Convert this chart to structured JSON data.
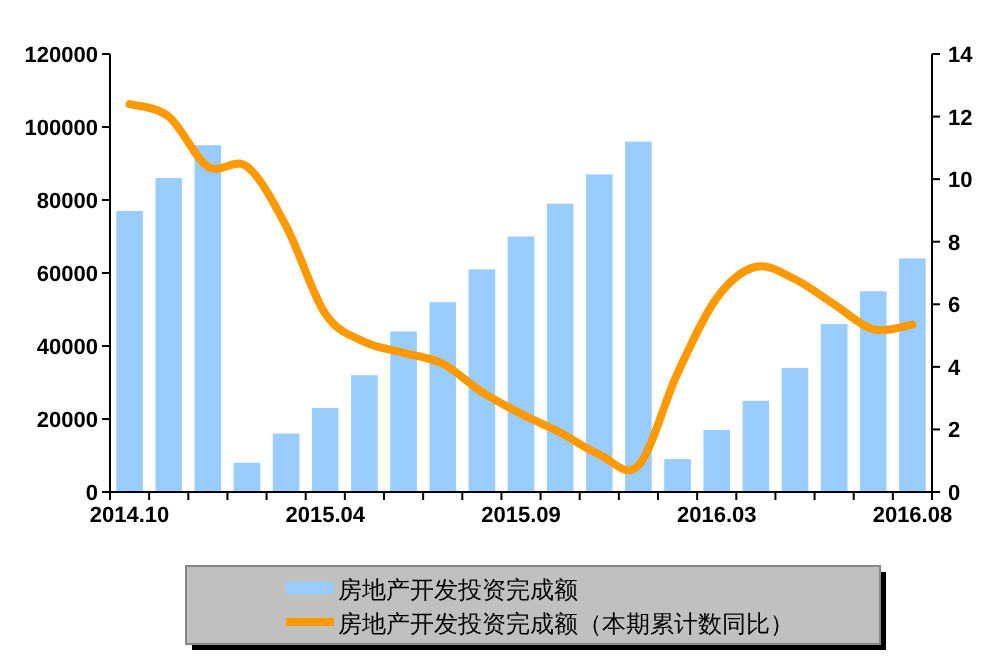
{
  "chart_data": {
    "type": "bar",
    "categories": [
      "2014.10",
      null,
      null,
      null,
      null,
      "2015.04",
      null,
      null,
      null,
      null,
      "2015.09",
      null,
      null,
      null,
      null,
      "2016.03",
      null,
      null,
      null,
      null,
      "2016.08"
    ],
    "series": [
      {
        "name": "房地产开发投资完成额",
        "color": "#99ccff",
        "values": [
          77000,
          86000,
          95000,
          8000,
          16000,
          23000,
          32000,
          44000,
          52000,
          61000,
          70000,
          79000,
          87000,
          96000,
          9000,
          17000,
          25000,
          34000,
          46000,
          55000,
          64000
        ]
      },
      {
        "name": "房地产开发投资完成额（本期累计数同比）",
        "type": "line",
        "axis": "y2",
        "color": "#ff9900",
        "values": [
          12.4,
          12.0,
          10.4,
          10.4,
          8.5,
          5.7,
          4.8,
          4.45,
          4.1,
          3.2,
          2.5,
          1.9,
          1.2,
          0.85,
          3.8,
          6.2,
          7.2,
          6.8,
          6.0,
          5.2,
          5.35
        ]
      }
    ],
    "ylim": [
      0,
      120000
    ],
    "yticks": [
      0,
      20000,
      40000,
      60000,
      80000,
      100000,
      120000
    ],
    "y2lim": [
      0,
      14
    ],
    "y2ticks": [
      0,
      2,
      4,
      6,
      8,
      10,
      12,
      14
    ],
    "legend": "bottom"
  }
}
